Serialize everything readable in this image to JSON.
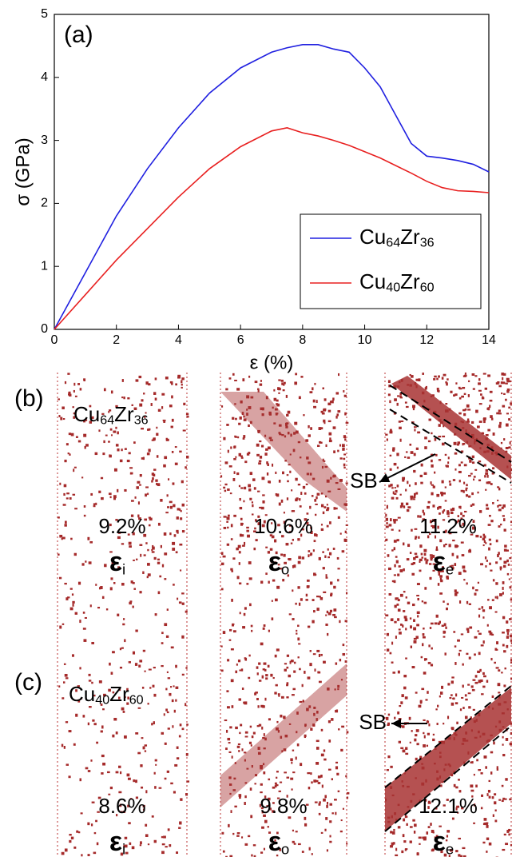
{
  "chart_data": {
    "type": "line",
    "panel_label": "(a)",
    "x_label": "ε (%)",
    "y_label": "σ (GPa)",
    "x": [
      0,
      1,
      2,
      3,
      4,
      5,
      6,
      7,
      7.5,
      8,
      8.5,
      9,
      9.5,
      10,
      10.5,
      11,
      11.5,
      12,
      12.5,
      13,
      13.5,
      14
    ],
    "series": [
      {
        "name": "Cu64Zr36",
        "color": "#2020e0",
        "values": [
          0,
          0.9,
          1.8,
          2.55,
          3.2,
          3.75,
          4.15,
          4.4,
          4.47,
          4.52,
          4.52,
          4.45,
          4.4,
          4.15,
          3.85,
          3.4,
          2.95,
          2.75,
          2.72,
          2.68,
          2.62,
          2.5
        ]
      },
      {
        "name": "Cu40Zr60",
        "color": "#e82020",
        "values": [
          0,
          0.55,
          1.1,
          1.6,
          2.1,
          2.55,
          2.9,
          3.15,
          3.2,
          3.12,
          3.07,
          3.0,
          2.92,
          2.82,
          2.72,
          2.6,
          2.48,
          2.35,
          2.25,
          2.2,
          2.19,
          2.17
        ]
      }
    ],
    "xlim": [
      0,
      14
    ],
    "xticks": [
      0,
      2,
      4,
      6,
      8,
      10,
      12,
      14
    ],
    "ylim": [
      0,
      5
    ],
    "yticks": [
      0,
      1,
      2,
      3,
      4,
      5
    ],
    "legend": "lower right"
  },
  "panels": [
    {
      "label": "(b)",
      "composition": "Cu64Zr36",
      "band_label": "SB",
      "snapshots": [
        {
          "strain": "9.2%",
          "symbol": "εi"
        },
        {
          "strain": "10.6%",
          "symbol": "εo"
        },
        {
          "strain": "11.2%",
          "symbol": "εe"
        }
      ]
    },
    {
      "label": "(c)",
      "composition": "Cu40Zr60",
      "band_label": "SB",
      "snapshots": [
        {
          "strain": "8.6%",
          "symbol": "εi"
        },
        {
          "strain": "9.8%",
          "symbol": "εo"
        },
        {
          "strain": "12.1%",
          "symbol": "εe"
        }
      ]
    }
  ]
}
